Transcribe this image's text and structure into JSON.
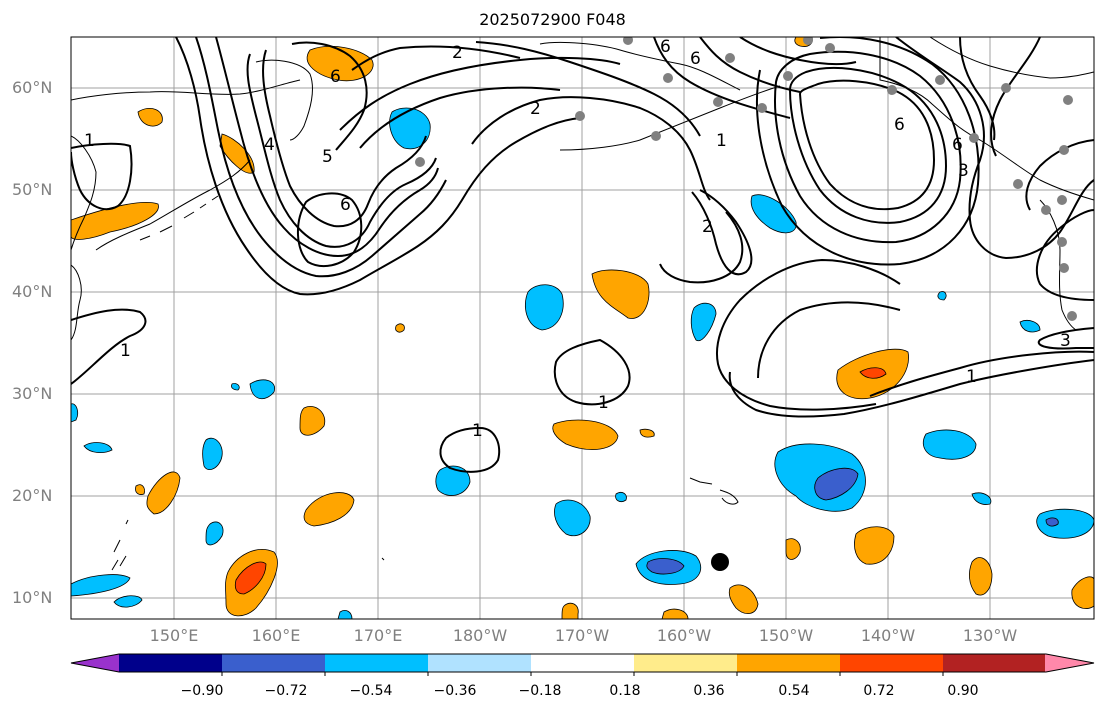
{
  "title": "2025072900 F048",
  "lat_labels": [
    "60°N",
    "50°N",
    "40°N",
    "30°N",
    "20°N",
    "10°N"
  ],
  "lon_labels": [
    "150°E",
    "160°E",
    "170°E",
    "180°W",
    "170°W",
    "160°W",
    "150°W",
    "140°W",
    "130°W"
  ],
  "colorbar": {
    "ticks": [
      "−0.90",
      "−0.72",
      "−0.54",
      "−0.36",
      "−0.18",
      "0.18",
      "0.36",
      "0.54",
      "0.72",
      "0.90"
    ],
    "colors": [
      "#9932CC",
      "#00008B",
      "#3A5FCD",
      "#00BFFF",
      "#B0E2FF",
      "#FFFFFF",
      "#FFEC8B",
      "#FFA500",
      "#FF4500",
      "#B22222",
      "#FF88AA"
    ]
  },
  "contour_labels": [
    "2",
    "6",
    "2",
    "6",
    "6",
    "1",
    "4",
    "5",
    "6",
    "2",
    "1",
    "6",
    "3",
    "1",
    "1",
    "1",
    "1",
    "3",
    "6"
  ]
}
